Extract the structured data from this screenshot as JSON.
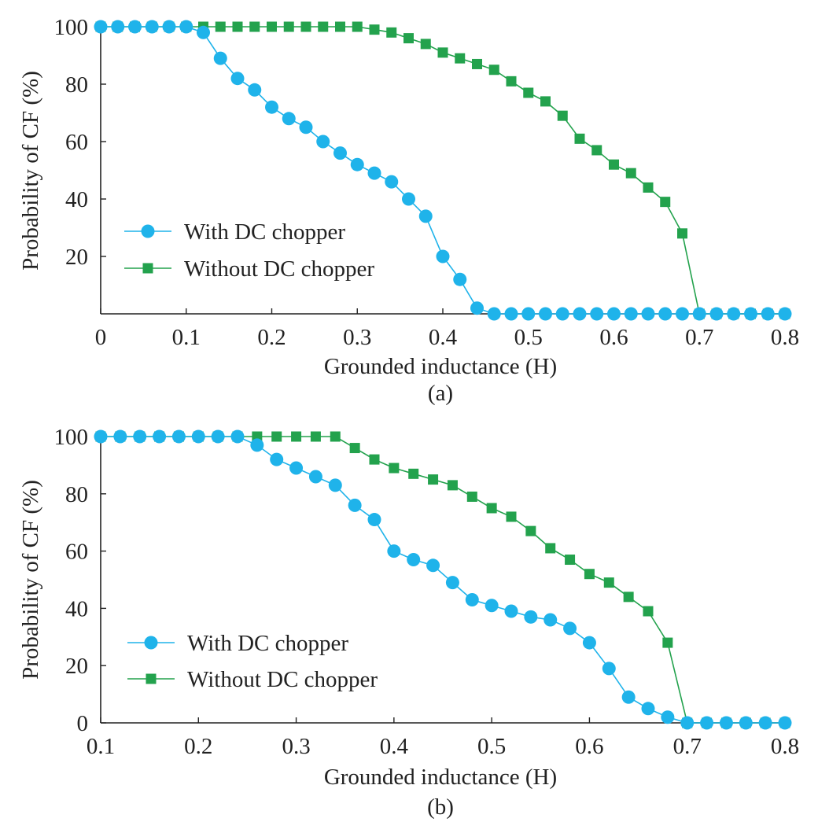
{
  "colors": {
    "series_with": "#1fb3ea",
    "series_without": "#23a24d",
    "axis": "#222222"
  },
  "chart_data": [
    {
      "type": "line",
      "caption": "(a)",
      "xlabel": "Grounded inductance (H)",
      "ylabel": "Probability of CF (%)",
      "xlim": [
        0,
        0.8
      ],
      "ylim": [
        0,
        100
      ],
      "xticks": [
        0,
        0.1,
        0.2,
        0.3,
        0.4,
        0.5,
        0.6,
        0.7,
        0.8
      ],
      "xtick_labels": [
        "0",
        "0.1",
        "0.2",
        "0.3",
        "0.4",
        "0.5",
        "0.6",
        "0.7",
        "0.8"
      ],
      "yticks": [
        20,
        40,
        60,
        80,
        100
      ],
      "ytick_labels": [
        "20",
        "40",
        "60",
        "80",
        "100"
      ],
      "grid": false,
      "legend_position": "bottom-left",
      "series": [
        {
          "name": "With DC chopper",
          "marker": "circle",
          "x": [
            0,
            0.02,
            0.04,
            0.06,
            0.08,
            0.1,
            0.12,
            0.14,
            0.16,
            0.18,
            0.2,
            0.22,
            0.24,
            0.26,
            0.28,
            0.3,
            0.32,
            0.34,
            0.36,
            0.38,
            0.4,
            0.42,
            0.44,
            0.46,
            0.48,
            0.5,
            0.52,
            0.54,
            0.56,
            0.58,
            0.6,
            0.62,
            0.64,
            0.66,
            0.68,
            0.7,
            0.72,
            0.74,
            0.76,
            0.78,
            0.8
          ],
          "y": [
            100,
            100,
            100,
            100,
            100,
            100,
            98,
            89,
            82,
            78,
            72,
            68,
            65,
            60,
            56,
            52,
            49,
            46,
            40,
            34,
            20,
            12,
            2,
            0,
            0,
            0,
            0,
            0,
            0,
            0,
            0,
            0,
            0,
            0,
            0,
            0,
            0,
            0,
            0,
            0,
            0
          ]
        },
        {
          "name": "Without DC chopper",
          "marker": "square",
          "x": [
            0,
            0.02,
            0.04,
            0.06,
            0.08,
            0.1,
            0.12,
            0.14,
            0.16,
            0.18,
            0.2,
            0.22,
            0.24,
            0.26,
            0.28,
            0.3,
            0.32,
            0.34,
            0.36,
            0.38,
            0.4,
            0.42,
            0.44,
            0.46,
            0.48,
            0.5,
            0.52,
            0.54,
            0.56,
            0.58,
            0.6,
            0.62,
            0.64,
            0.66,
            0.68,
            0.7,
            0.72,
            0.74,
            0.76,
            0.78,
            0.8
          ],
          "y": [
            100,
            100,
            100,
            100,
            100,
            100,
            100,
            100,
            100,
            100,
            100,
            100,
            100,
            100,
            100,
            100,
            99,
            98,
            96,
            94,
            91,
            89,
            87,
            85,
            81,
            77,
            74,
            69,
            61,
            57,
            52,
            49,
            44,
            39,
            28,
            0,
            0,
            0,
            0,
            0,
            0
          ]
        }
      ]
    },
    {
      "type": "line",
      "caption": "(b)",
      "xlabel": "Grounded inductance (H)",
      "ylabel": "Probability of CF (%)",
      "xlim": [
        0.1,
        0.8
      ],
      "ylim": [
        0,
        100
      ],
      "xticks": [
        0.1,
        0.2,
        0.3,
        0.4,
        0.5,
        0.6,
        0.7,
        0.8
      ],
      "xtick_labels": [
        "0.1",
        "0.2",
        "0.3",
        "0.4",
        "0.5",
        "0.6",
        "0.7",
        "0.8"
      ],
      "yticks": [
        0,
        20,
        40,
        60,
        80,
        100
      ],
      "ytick_labels": [
        "0",
        "20",
        "40",
        "60",
        "80",
        "100"
      ],
      "grid": false,
      "legend_position": "bottom-left",
      "series": [
        {
          "name": "With DC chopper",
          "marker": "circle",
          "x": [
            0.1,
            0.12,
            0.14,
            0.16,
            0.18,
            0.2,
            0.22,
            0.24,
            0.26,
            0.28,
            0.3,
            0.32,
            0.34,
            0.36,
            0.38,
            0.4,
            0.42,
            0.44,
            0.46,
            0.48,
            0.5,
            0.52,
            0.54,
            0.56,
            0.58,
            0.6,
            0.62,
            0.64,
            0.66,
            0.68,
            0.7,
            0.72,
            0.74,
            0.76,
            0.78,
            0.8
          ],
          "y": [
            100,
            100,
            100,
            100,
            100,
            100,
            100,
            100,
            97,
            92,
            89,
            86,
            83,
            76,
            71,
            60,
            57,
            55,
            49,
            43,
            41,
            39,
            37,
            36,
            33,
            28,
            19,
            9,
            5,
            2,
            0,
            0,
            0,
            0,
            0,
            0
          ]
        },
        {
          "name": "Without DC chopper",
          "marker": "square",
          "x": [
            0.1,
            0.12,
            0.14,
            0.16,
            0.18,
            0.2,
            0.22,
            0.24,
            0.26,
            0.28,
            0.3,
            0.32,
            0.34,
            0.36,
            0.38,
            0.4,
            0.42,
            0.44,
            0.46,
            0.48,
            0.5,
            0.52,
            0.54,
            0.56,
            0.58,
            0.6,
            0.62,
            0.64,
            0.66,
            0.68,
            0.7,
            0.72,
            0.74,
            0.76,
            0.78,
            0.8
          ],
          "y": [
            100,
            100,
            100,
            100,
            100,
            100,
            100,
            100,
            100,
            100,
            100,
            100,
            100,
            96,
            92,
            89,
            87,
            85,
            83,
            79,
            75,
            72,
            67,
            61,
            57,
            52,
            49,
            44,
            39,
            28,
            0,
            0,
            0,
            0,
            0,
            0
          ]
        }
      ]
    }
  ]
}
